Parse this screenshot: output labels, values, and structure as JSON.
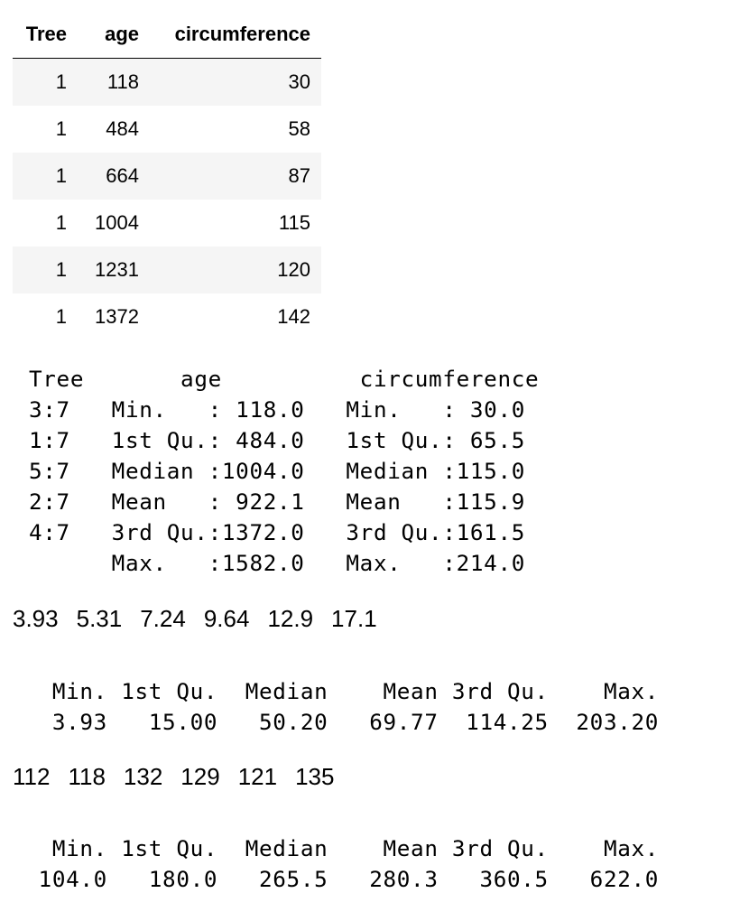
{
  "table": {
    "headers": [
      "Tree",
      "age",
      "circumference"
    ],
    "rows": [
      [
        "1",
        "118",
        "30"
      ],
      [
        "1",
        "484",
        "58"
      ],
      [
        "1",
        "664",
        "87"
      ],
      [
        "1",
        "1004",
        "115"
      ],
      [
        "1",
        "1231",
        "120"
      ],
      [
        "1",
        "1372",
        "142"
      ]
    ]
  },
  "summary_lines": [
    "Tree       age          circumference",
    "3:7   Min.   : 118.0   Min.   : 30.0",
    "1:7   1st Qu.: 484.0   1st Qu.: 65.5",
    "5:7   Median :1004.0   Median :115.0",
    "2:7   Mean   : 922.1   Mean   :115.9",
    "4:7   3rd Qu.:1372.0   3rd Qu.:161.5",
    "      Max.   :1582.0   Max.   :214.0"
  ],
  "vector_1": [
    "3.93",
    "5.31",
    "7.24",
    "9.64",
    "12.9",
    "17.1"
  ],
  "summary_2": {
    "header": "   Min. 1st Qu.  Median    Mean 3rd Qu.    Max. ",
    "values": "   3.93   15.00   50.20   69.77  114.25  203.20 "
  },
  "vector_2": [
    "112",
    "118",
    "132",
    "129",
    "121",
    "135"
  ],
  "summary_3": {
    "header": "   Min. 1st Qu.  Median    Mean 3rd Qu.    Max. ",
    "values": "  104.0   180.0   265.5   280.3   360.5   622.0 "
  }
}
